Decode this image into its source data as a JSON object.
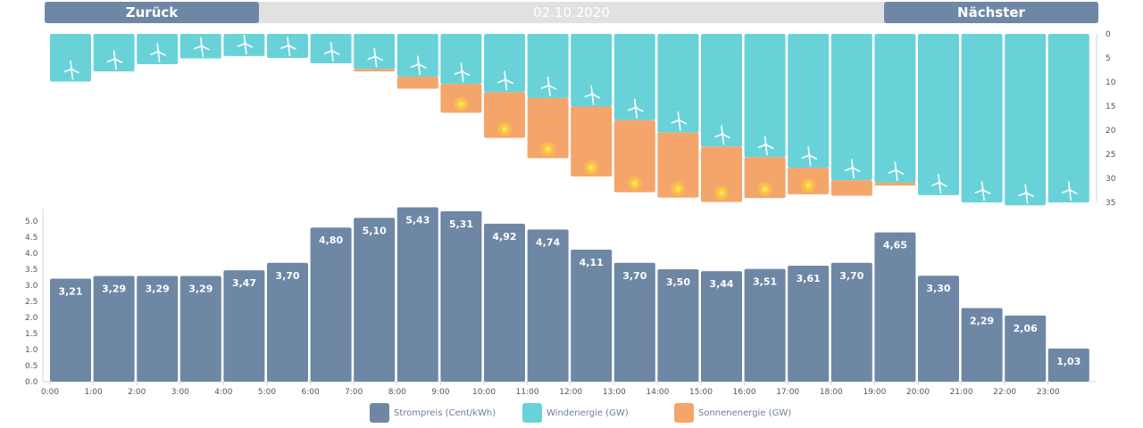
{
  "nav": {
    "prev_label": "Zurück",
    "date": "02.10.2020",
    "next_label": "Nächster"
  },
  "colors": {
    "price": "#6e87a5",
    "wind": "#69d2d9",
    "solar": "#f4a56b",
    "sun_dot": "#fcd335",
    "topbar": "#e1e1e1"
  },
  "legend": [
    {
      "label": "Strompreis (Cent/kWh)",
      "color": "#6e87a5"
    },
    {
      "label": "Windenergie (GW)",
      "color": "#69d2d9"
    },
    {
      "label": "Sonnenenergie (GW)",
      "color": "#f4a56b"
    }
  ],
  "chart_data": [
    {
      "type": "bar",
      "stacked": true,
      "orientation": "hanging",
      "categories": [
        "0:00",
        "1:00",
        "2:00",
        "3:00",
        "4:00",
        "5:00",
        "6:00",
        "7:00",
        "8:00",
        "9:00",
        "10:00",
        "11:00",
        "12:00",
        "13:00",
        "14:00",
        "15:00",
        "16:00",
        "17:00",
        "18:00",
        "19:00",
        "20:00",
        "21:00",
        "22:00",
        "23:00"
      ],
      "series": [
        {
          "name": "Windenergie (GW)",
          "values": [
            9.9,
            7.8,
            6.3,
            5.1,
            4.6,
            5.0,
            6.1,
            7.3,
            8.9,
            10.4,
            12.1,
            13.3,
            15.1,
            17.9,
            20.5,
            23.4,
            25.6,
            27.8,
            30.4,
            30.9,
            33.5,
            35.0,
            35.6,
            35.0
          ]
        },
        {
          "name": "Sonnenenergie (GW)",
          "values": [
            0.0,
            0.0,
            0.0,
            0.0,
            0.0,
            0.0,
            0.0,
            0.5,
            2.5,
            6.0,
            9.5,
            12.5,
            14.5,
            15.0,
            13.5,
            11.5,
            8.5,
            5.5,
            3.2,
            0.6,
            0.0,
            0.0,
            0.0,
            0.0
          ]
        }
      ],
      "yticks": [
        "0",
        "5",
        "10",
        "15",
        "20",
        "25",
        "30",
        "35"
      ],
      "ylim": [
        0,
        35
      ],
      "y_axis_side": "right",
      "y_reversed": true
    },
    {
      "type": "bar",
      "categories": [
        "0:00",
        "1:00",
        "2:00",
        "3:00",
        "4:00",
        "5:00",
        "6:00",
        "7:00",
        "8:00",
        "9:00",
        "10:00",
        "11:00",
        "12:00",
        "13:00",
        "14:00",
        "15:00",
        "16:00",
        "17:00",
        "18:00",
        "19:00",
        "20:00",
        "21:00",
        "22:00",
        "23:00"
      ],
      "series": [
        {
          "name": "Strompreis (Cent/kWh)",
          "values": [
            3.21,
            3.29,
            3.29,
            3.29,
            3.47,
            3.7,
            4.8,
            5.1,
            5.43,
            5.31,
            4.92,
            4.74,
            4.11,
            3.7,
            3.5,
            3.44,
            3.51,
            3.61,
            3.7,
            4.65,
            3.3,
            2.29,
            2.06,
            1.03
          ]
        }
      ],
      "data_labels": [
        "3,21",
        "3,29",
        "3,29",
        "3,29",
        "3,47",
        "3,70",
        "4,80",
        "5,10",
        "5,43",
        "5,31",
        "4,92",
        "4,74",
        "4,11",
        "3,70",
        "3,50",
        "3,44",
        "3,51",
        "3,61",
        "3,70",
        "4,65",
        "3,30",
        "2,29",
        "2,06",
        "1,03"
      ],
      "xticks": [
        "0:00",
        "1:00",
        "2:00",
        "3:00",
        "4:00",
        "5:00",
        "6:00",
        "7:00",
        "8:00",
        "9:00",
        "10:00",
        "11:00",
        "12:00",
        "13:00",
        "14:00",
        "15:00",
        "16:00",
        "17:00",
        "18:00",
        "19:00",
        "20:00",
        "21:00",
        "22:00",
        "23:00"
      ],
      "yticks": [
        "0.0",
        "0.5",
        "1.0",
        "1.5",
        "2.0",
        "2.5",
        "3.0",
        "3.5",
        "4.0",
        "4.5",
        "5.0"
      ],
      "ylim": [
        0,
        5.4
      ],
      "y_axis_side": "left"
    }
  ]
}
